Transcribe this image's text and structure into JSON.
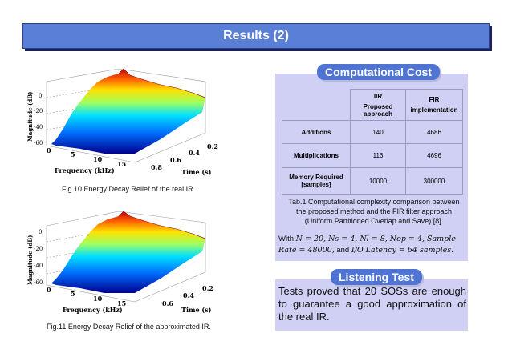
{
  "header": {
    "title": "Results (2)"
  },
  "figures": [
    {
      "caption": "Fig.10 Energy Decay Relief of the real IR.",
      "zlabel": "Magnitude (dB)",
      "xlabel": "Frequency (kHz)",
      "ylabel": "Time (s)",
      "zticks": [
        "0",
        "-20",
        "-40",
        "-60"
      ],
      "xticks": [
        "0",
        "5",
        "10",
        "15"
      ],
      "yticks": [
        "0.8",
        "0.6",
        "0.4",
        "0.2"
      ]
    },
    {
      "caption": "Fig.11 Energy Decay Relief of the approximated IR.",
      "zlabel": "Magnitude (dB)",
      "xlabel": "Frequency (kHz)",
      "ylabel": "Time (s)",
      "zticks": [
        "0",
        "-20",
        "-40",
        "-60"
      ],
      "xticks": [
        "0",
        "5",
        "10",
        "15"
      ],
      "yticks": [
        "0.6",
        "0.4",
        "0.2"
      ]
    }
  ],
  "cost": {
    "heading": "Computational Cost",
    "col_iir_line1": "IIR",
    "col_iir_line2": "Proposed approach",
    "col_fir_line1": "FIR",
    "col_fir_line2": "implementation",
    "rows": [
      {
        "label": "Additions",
        "iir": "140",
        "fir": "4686"
      },
      {
        "label": "Multiplications",
        "iir": "116",
        "fir": "4696"
      },
      {
        "label": "Memory Required [samples]",
        "iir": "10000",
        "fir": "300000"
      }
    ],
    "table_caption": "Tab.1 Computational complexity comparison between the proposed method and the FIR filter approach (Uniform Partitioned Overlap and Save) [8].",
    "with_prefix": "With",
    "with_params": "N = 20, Ns = 4, Nl = 8, Nop = 4, Sample Rate = 48000,",
    "with_and": "and",
    "with_latency": "I/O Latency = 64 samples."
  },
  "listening": {
    "heading": "Listening Test",
    "text": "Tests proved that 20 SOSs are enough to guarantee a good approximation of the real IR."
  },
  "colors": {
    "accent": "#4f74d4",
    "panel": "#d0d0f4"
  }
}
